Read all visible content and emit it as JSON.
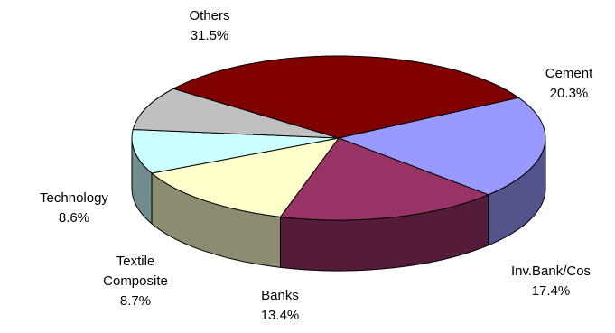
{
  "chart_data": {
    "type": "pie",
    "title": "",
    "three_d": true,
    "slices": [
      {
        "name": "Cement",
        "value": 20.3,
        "value_label": "20.3%",
        "label_lines": [
          "Cement"
        ],
        "color": "#9999FF"
      },
      {
        "name": "Inv.Bank/Cos",
        "value": 17.4,
        "value_label": "17.4%",
        "label_lines": [
          "Inv.Bank/Cos"
        ],
        "color": "#993366"
      },
      {
        "name": "Banks",
        "value": 13.4,
        "value_label": "13.4%",
        "label_lines": [
          "Banks"
        ],
        "color": "#FFFFCC"
      },
      {
        "name": "Textile Composite",
        "value": 8.7,
        "value_label": "8.7%",
        "label_lines": [
          "Textile",
          "Composite"
        ],
        "color": "#CCFFFF"
      },
      {
        "name": "Technology",
        "value": 8.6,
        "value_label": "8.6%",
        "label_lines": [
          "Technology"
        ],
        "color": "#C0C0C0"
      },
      {
        "name": "Others",
        "value": 31.5,
        "value_label": "31.5%",
        "label_lines": [
          "Others"
        ],
        "color": "#800000"
      }
    ]
  }
}
